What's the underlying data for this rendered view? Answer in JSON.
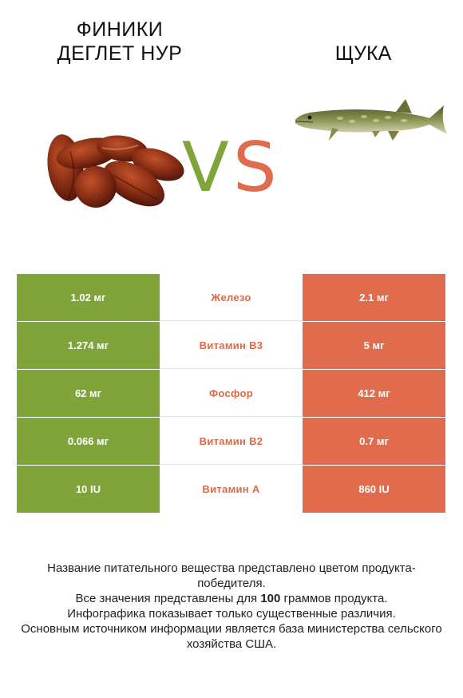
{
  "left_food": {
    "title_line1": "ФИНИКИ",
    "title_line2": "ДЕГЛЕТ НУР",
    "image_icon": "dates-image",
    "color": "#7ea43a"
  },
  "right_food": {
    "title": "ЩУКА",
    "image_icon": "pike-fish-image",
    "color": "#e06b4d"
  },
  "vs": {
    "v": "V",
    "s": "S"
  },
  "rows": [
    {
      "left": "1.02 мг",
      "nutrient": "Железо",
      "right": "2.1 мг"
    },
    {
      "left": "1.274 мг",
      "nutrient": "Витамин B3",
      "right": "5 мг"
    },
    {
      "left": "62 мг",
      "nutrient": "Фосфор",
      "right": "412 мг"
    },
    {
      "left": "0.066 мг",
      "nutrient": "Витамин B2",
      "right": "0.7 мг"
    },
    {
      "left": "10 IU",
      "nutrient": "Витамин A",
      "right": "860 IU"
    }
  ],
  "footer": {
    "line1": "Название питательного вещества представлено цветом продукта-победителя.",
    "line2_prefix": "Все значения представлены для ",
    "line2_bold": "100",
    "line2_suffix": " граммов продукта.",
    "line3": "Инфографика показывает только существенные различия.",
    "line4": "Основным источником информации является база министерства сельского хозяйства США."
  }
}
